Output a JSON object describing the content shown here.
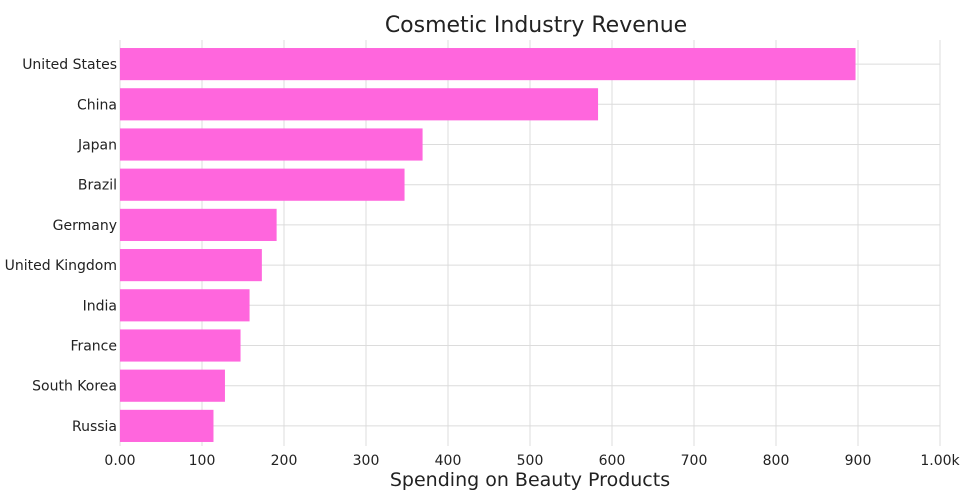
{
  "chart_data": {
    "type": "bar",
    "orientation": "horizontal",
    "title": "Cosmetic Industry Revenue",
    "xlabel": "Spending on Beauty Products",
    "ylabel": "",
    "xlim": [
      0,
      1000
    ],
    "x_ticks": [
      "0.00",
      "100",
      "200",
      "300",
      "400",
      "500",
      "600",
      "700",
      "800",
      "900",
      "1.00k"
    ],
    "categories": [
      "United States",
      "China",
      "Japan",
      "Brazil",
      "Germany",
      "United Kingdom",
      "India",
      "France",
      "South Korea",
      "Russia"
    ],
    "values": [
      897,
      583,
      369,
      347,
      191,
      173,
      158,
      147,
      128,
      114
    ],
    "bar_color": "#ff66dd",
    "grid": true,
    "legend": "none"
  }
}
